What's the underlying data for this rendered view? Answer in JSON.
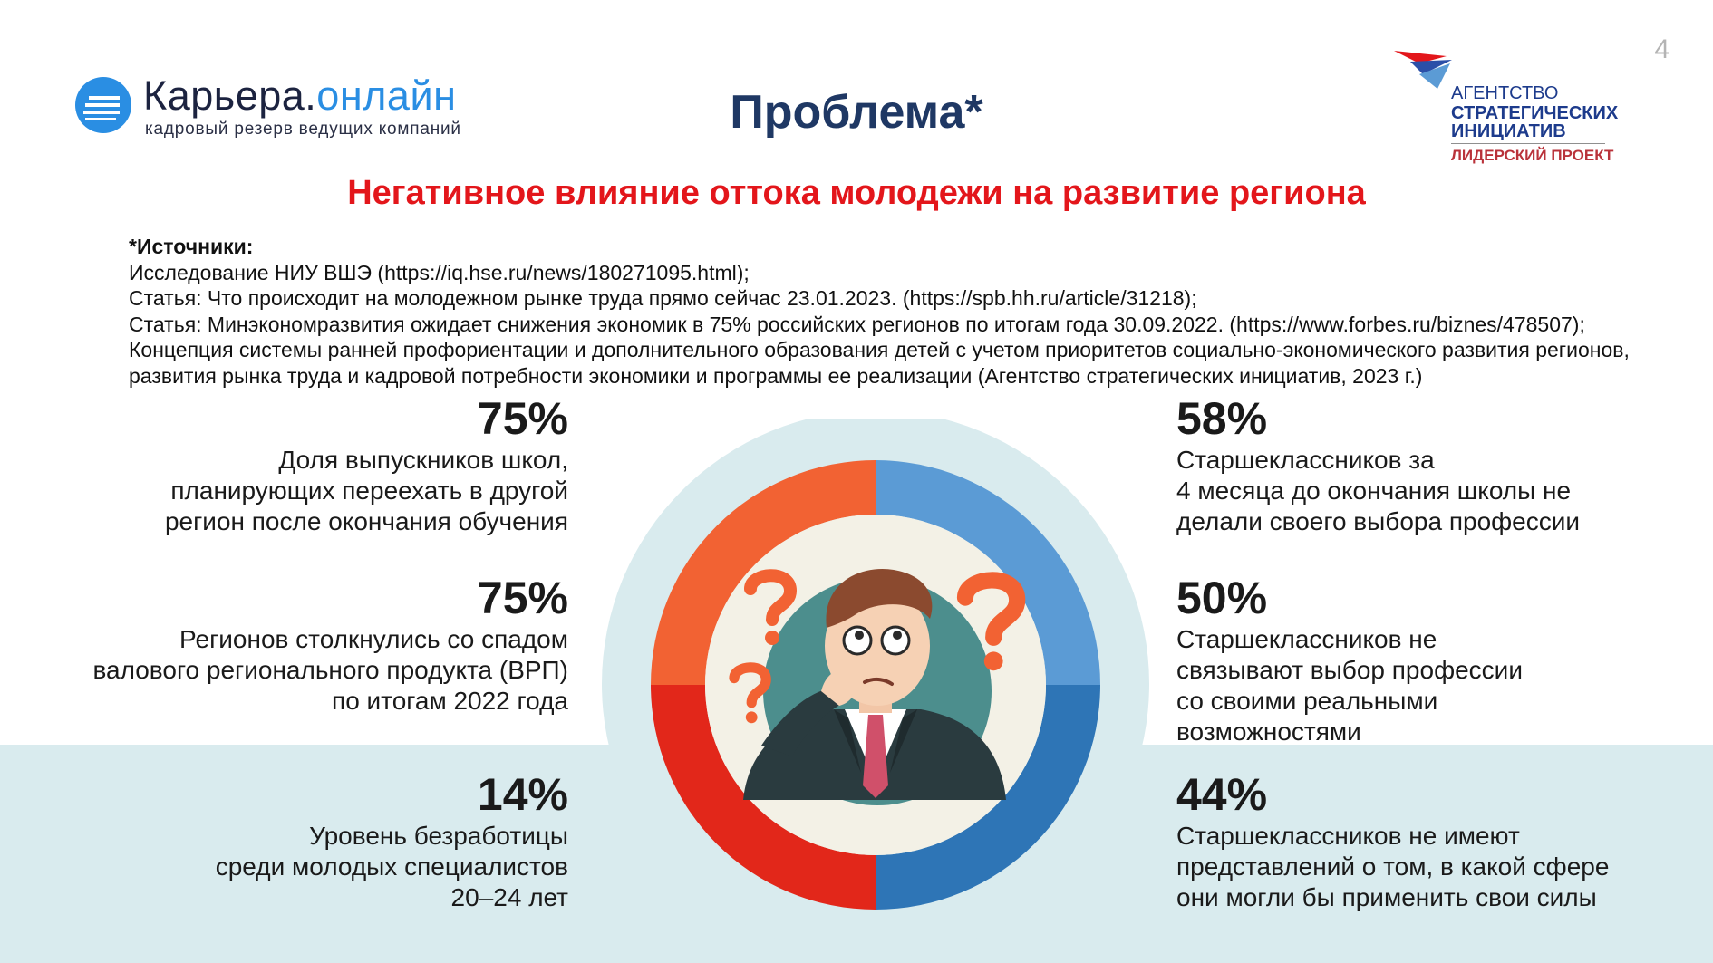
{
  "page_number": "4",
  "logo_left": {
    "title_main": "Карьера.",
    "title_accent": "онлайн",
    "tagline": "кадровый резерв ведущих компаний"
  },
  "logo_right": {
    "line1": "АГЕНТСТВО",
    "line2": "СТРАТЕГИЧЕСКИХ",
    "line3": "ИНИЦИАТИВ",
    "line4": "ЛИДЕРСКИЙ ПРОЕКТ"
  },
  "title": "Проблема*",
  "subtitle": "Негативное влияние оттока молодежи на развитие региона",
  "sources": {
    "heading": "*Источники:",
    "lines": [
      "Исследование НИУ ВШЭ (https://iq.hse.ru/news/180271095.html);",
      "Статья: Что происходит на молодежном рынке труда прямо сейчас 23.01.2023. (https://spb.hh.ru/article/31218);",
      "Статья: Минэкономразвития ожидает снижения экономик в 75% российских регионов по итогам года 30.09.2022. (https://www.forbes.ru/biznes/478507);",
      "Концепция системы ранней профориентации и дополнительного образования детей с учетом приоритетов социально-экономического развития регионов,",
      "развития рынка труда и кадровой потребности экономики и программы ее реализации (Агентство стратегических инициатив, 2023 г.)"
    ]
  },
  "stats": {
    "left": [
      {
        "percent": "75%",
        "lines": [
          "Доля выпускников школ,",
          "планирующих переехать в другой",
          "регион после окончания обучения"
        ]
      },
      {
        "percent": "75%",
        "lines": [
          "Регионов столкнулись со спадом",
          "валового регионального продукта (ВРП)",
          "по итогам 2022 года"
        ]
      },
      {
        "percent": "14%",
        "lines": [
          "Уровень безработицы",
          "среди молодых специалистов",
          "20–24 лет"
        ]
      }
    ],
    "right": [
      {
        "percent": "58%",
        "lines": [
          "Старшеклассников за",
          "4 месяца до окончания школы не",
          "делали своего выбора профессии"
        ]
      },
      {
        "percent": "50%",
        "lines": [
          "Старшеклассников не",
          "связывают выбор профессии",
          "со своими реальными",
          "возможностями"
        ]
      },
      {
        "percent": "44%",
        "lines": [
          "Старшеклассников не имеют",
          "представлений о том, в какой сфере",
          "они могли бы применить свои силы"
        ]
      }
    ]
  },
  "colors": {
    "title": "#1f3864",
    "subtitle": "#e3161b",
    "band": "#d9ebee",
    "ring_top_left": "#f26233",
    "ring_bottom_left": "#e2271a",
    "ring_top_right": "#5b9bd5",
    "ring_bottom_right": "#2e75b6",
    "question_marks": "#f26233"
  },
  "illustration": {
    "icon": "thinking-man-with-question-marks"
  }
}
